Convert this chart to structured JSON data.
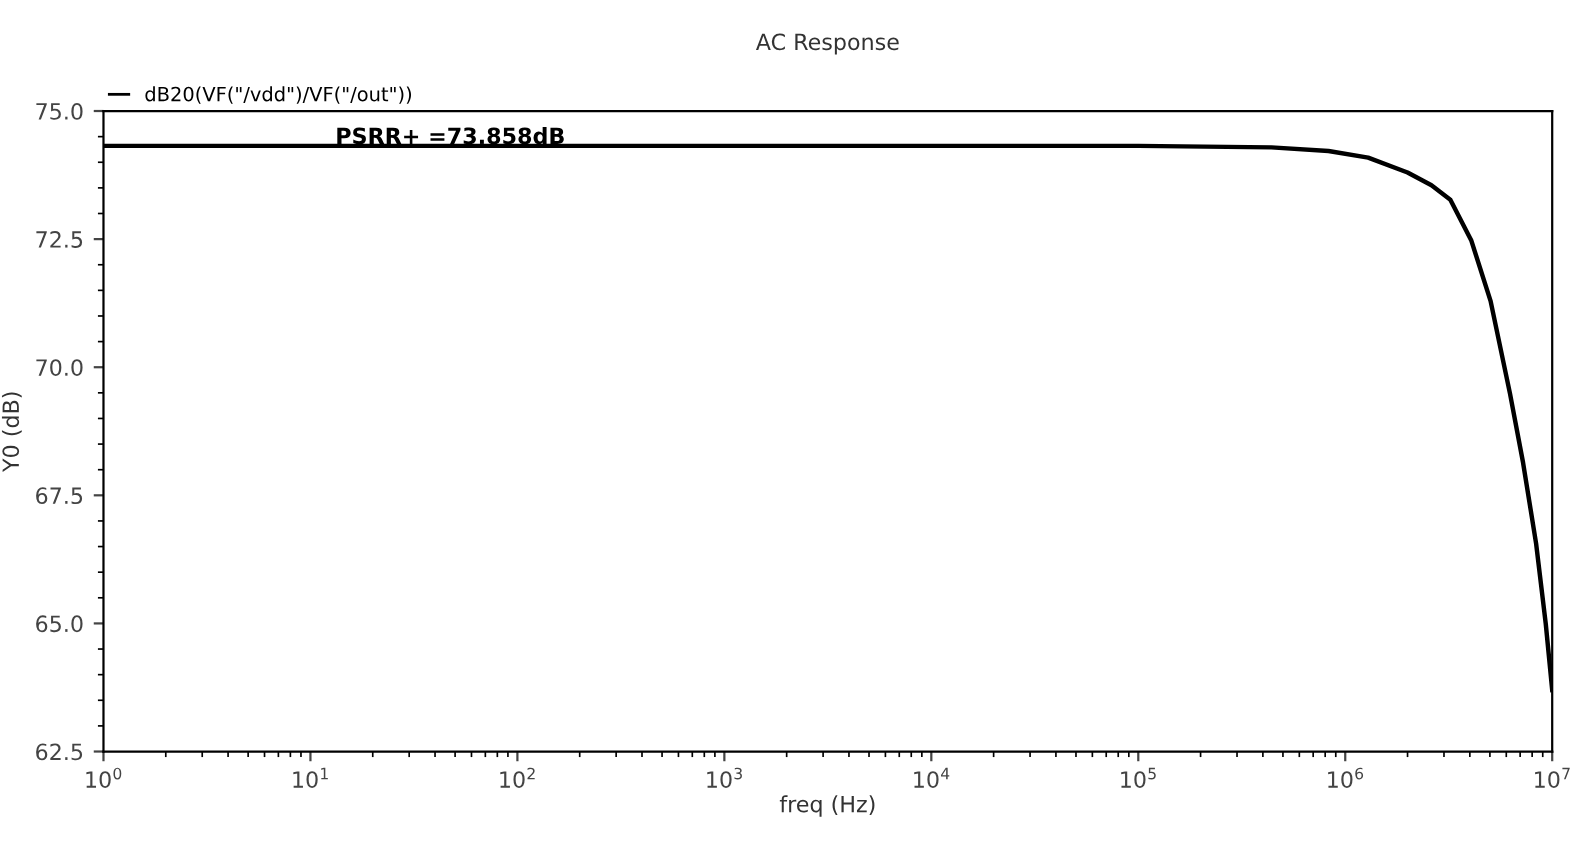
{
  "chart_data": {
    "type": "line",
    "title": "AC Response",
    "xlabel": "freq (Hz)",
    "ylabel": "Y0 (dB)",
    "series": [
      {
        "name": "dB20(VF(\"/vdd\")/VF(\"/out\"))",
        "color": "#000000",
        "x": [
          1,
          100000,
          440000,
          830000,
          1290000,
          2000000,
          2610000,
          3220000,
          4060000,
          5040000,
          6250000,
          7230000,
          8360000,
          9310000,
          10000000
        ],
        "values": [
          74.32,
          74.32,
          74.29,
          74.22,
          74.09,
          73.8,
          73.55,
          73.27,
          72.48,
          71.29,
          69.49,
          68.14,
          66.56,
          64.99,
          63.7
        ]
      }
    ],
    "log": "x",
    "xlim": [
      1,
      10000000
    ],
    "xticks": [
      {
        "value": 1,
        "label": "10$^{0}$"
      },
      {
        "value": 10,
        "label": "10$^{1}$"
      },
      {
        "value": 100,
        "label": "10$^{2}$"
      },
      {
        "value": 1000,
        "label": "10$^{3}$"
      },
      {
        "value": 10000,
        "label": "10$^{4}$"
      },
      {
        "value": 100000,
        "label": "10$^{5}$"
      },
      {
        "value": 1000000,
        "label": "10$^{6}$"
      },
      {
        "value": 10000000,
        "label": "10$^{7}$"
      }
    ],
    "ylim": [
      62.5,
      75.0
    ],
    "yticks": [
      {
        "value": 62.5,
        "label": "62.5"
      },
      {
        "value": 65.0,
        "label": "65.0"
      },
      {
        "value": 67.5,
        "label": "67.5"
      },
      {
        "value": 70.0,
        "label": "70.0"
      },
      {
        "value": 72.5,
        "label": "72.5"
      },
      {
        "value": 75.0,
        "label": "75.0"
      }
    ],
    "annotations": [
      "PSRR+ =73.858dB"
    ],
    "legend": "top left",
    "grid": false,
    "marker": "none",
    "line_style": "solid"
  }
}
